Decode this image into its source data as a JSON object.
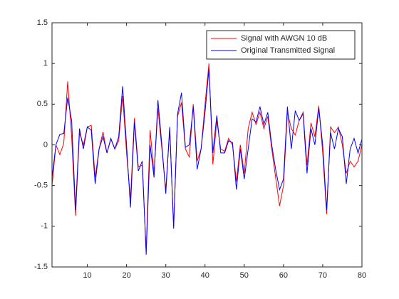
{
  "chart_data": {
    "type": "line",
    "x": [
      1,
      2,
      3,
      4,
      5,
      6,
      7,
      8,
      9,
      10,
      11,
      12,
      13,
      14,
      15,
      16,
      17,
      18,
      19,
      20,
      21,
      22,
      23,
      24,
      25,
      26,
      27,
      28,
      29,
      30,
      31,
      32,
      33,
      34,
      35,
      36,
      37,
      38,
      39,
      40,
      41,
      42,
      43,
      44,
      45,
      46,
      47,
      48,
      49,
      50,
      51,
      52,
      53,
      54,
      55,
      56,
      57,
      58,
      59,
      60,
      61,
      62,
      63,
      64,
      65,
      66,
      67,
      68,
      69,
      70,
      71,
      72,
      73,
      74,
      75,
      76,
      77,
      78,
      79,
      80
    ],
    "series": [
      {
        "name": "Signal with AWGN 10 dB",
        "color": "#ff0000",
        "values": [
          -0.5,
          0.0,
          -0.12,
          0.02,
          0.78,
          0.1,
          -0.87,
          0.15,
          0.0,
          0.22,
          0.24,
          -0.4,
          -0.05,
          0.16,
          -0.1,
          0.07,
          -0.05,
          0.05,
          0.6,
          -0.1,
          -0.67,
          0.33,
          -0.27,
          -0.25,
          -1.3,
          0.18,
          -0.35,
          0.45,
          -0.05,
          -0.55,
          0.2,
          -1.0,
          0.35,
          0.52,
          -0.05,
          -0.15,
          0.5,
          -0.2,
          -0.05,
          0.5,
          1.0,
          -0.24,
          0.3,
          -0.05,
          -0.08,
          0.08,
          0.0,
          -0.45,
          0.0,
          -0.35,
          0.2,
          0.4,
          0.25,
          0.4,
          0.2,
          0.35,
          -0.05,
          -0.4,
          -0.75,
          -0.5,
          0.4,
          0.2,
          0.12,
          0.3,
          0.4,
          -0.25,
          0.27,
          0.1,
          0.48,
          -0.1,
          -0.85,
          0.22,
          0.15,
          0.22,
          0.0,
          -0.35,
          -0.2,
          -0.27,
          -0.2,
          0.0
        ]
      },
      {
        "name": "Original Transmitted Signal",
        "color": "#0000ff",
        "values": [
          -0.4,
          0.0,
          0.13,
          0.14,
          0.58,
          0.3,
          -0.8,
          0.2,
          -0.05,
          0.22,
          0.18,
          -0.48,
          -0.05,
          0.1,
          -0.1,
          0.08,
          -0.05,
          0.1,
          0.72,
          0.0,
          -0.77,
          0.28,
          -0.32,
          -0.2,
          -1.35,
          0.0,
          -0.4,
          0.55,
          0.0,
          -0.6,
          0.22,
          -1.03,
          0.38,
          0.64,
          -0.03,
          0.0,
          0.47,
          -0.3,
          -0.05,
          0.4,
          0.93,
          -0.1,
          0.36,
          -0.1,
          -0.1,
          0.05,
          0.03,
          -0.55,
          -0.05,
          -0.42,
          -0.05,
          0.32,
          0.28,
          0.47,
          0.25,
          0.4,
          0.0,
          -0.3,
          -0.55,
          -0.42,
          0.47,
          -0.05,
          0.42,
          0.3,
          0.38,
          -0.35,
          0.2,
          0.0,
          0.45,
          0.0,
          -0.8,
          0.15,
          -0.05,
          0.2,
          0.1,
          -0.48,
          -0.05,
          0.08,
          -0.1,
          0.07
        ]
      }
    ],
    "xlim": [
      1,
      80
    ],
    "xticks": [
      10,
      20,
      30,
      40,
      50,
      60,
      70,
      80
    ],
    "ylim": [
      -1.5,
      1.5
    ],
    "yticks": [
      -1.5,
      -1,
      -0.5,
      0,
      0.5,
      1,
      1.5
    ],
    "legend": "northeast"
  }
}
